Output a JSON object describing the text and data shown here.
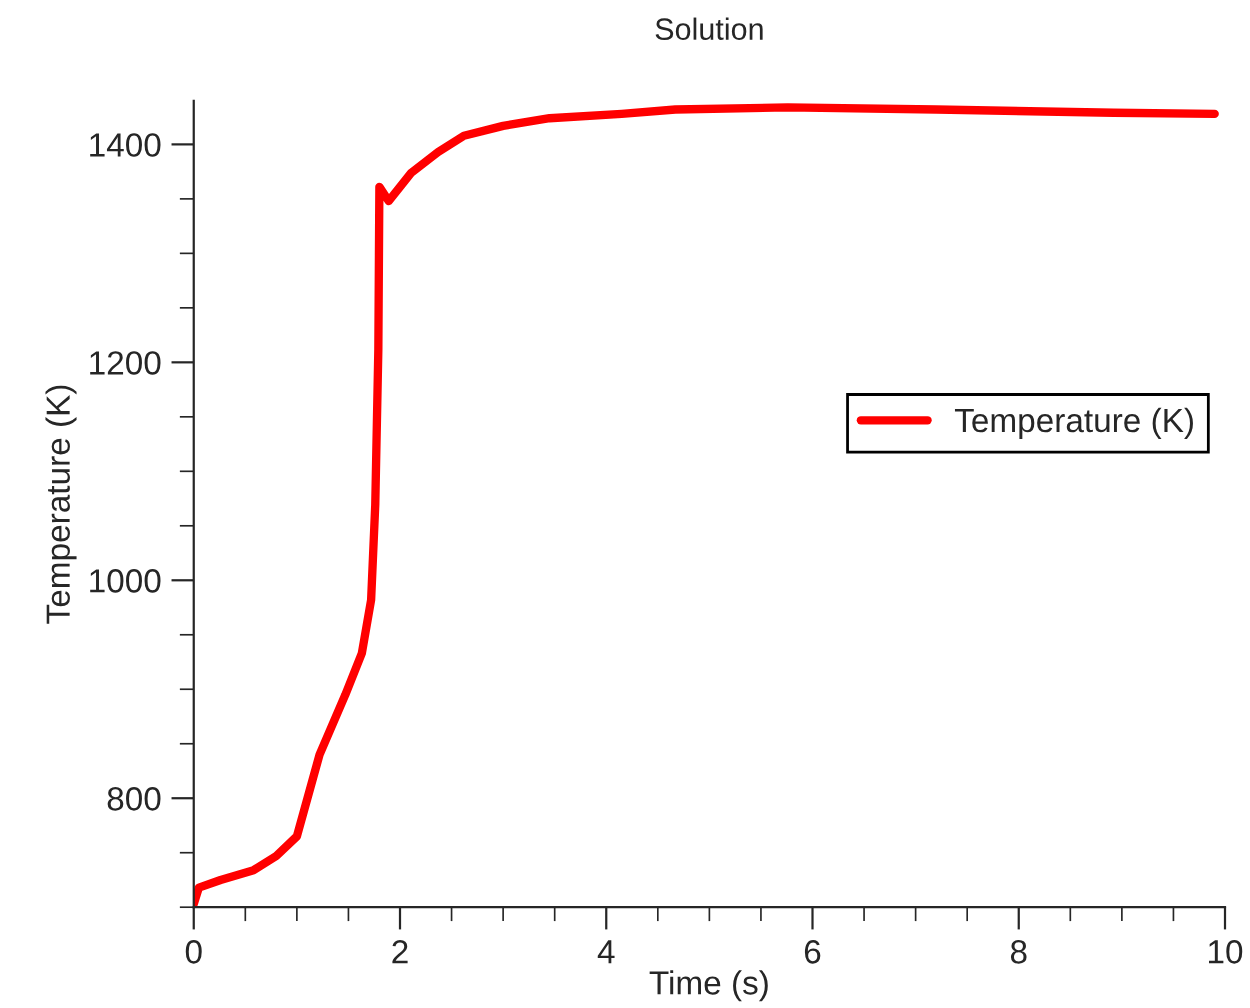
{
  "chart_data": {
    "type": "line",
    "title": "Solution",
    "xlabel": "Time (s)",
    "ylabel": "Temperature (K)",
    "xlim": [
      0,
      10
    ],
    "ylim": [
      700,
      1440
    ],
    "xticks": [
      0,
      2,
      4,
      6,
      8,
      10
    ],
    "yticks": [
      800,
      1000,
      1200,
      1400
    ],
    "grid": false,
    "legend": "right",
    "marker": "none",
    "line_style": "solid",
    "series": [
      {
        "name": "Temperature (K)",
        "color": "#ff0000",
        "x": [
          0,
          0.05,
          0.26,
          0.58,
          0.8,
          1.0,
          1.22,
          1.47,
          1.63,
          1.72,
          1.76,
          1.79,
          1.8,
          1.89,
          2.11,
          2.37,
          2.62,
          3.0,
          3.45,
          4.15,
          4.67,
          5.76,
          7.2,
          8.92,
          9.9
        ],
        "values": [
          703,
          718,
          725,
          734,
          747,
          765,
          840,
          895,
          933,
          982,
          1069,
          1212,
          1361,
          1348,
          1374,
          1393,
          1408,
          1417,
          1424,
          1428,
          1432,
          1434,
          1432,
          1429,
          1428
        ]
      }
    ]
  }
}
